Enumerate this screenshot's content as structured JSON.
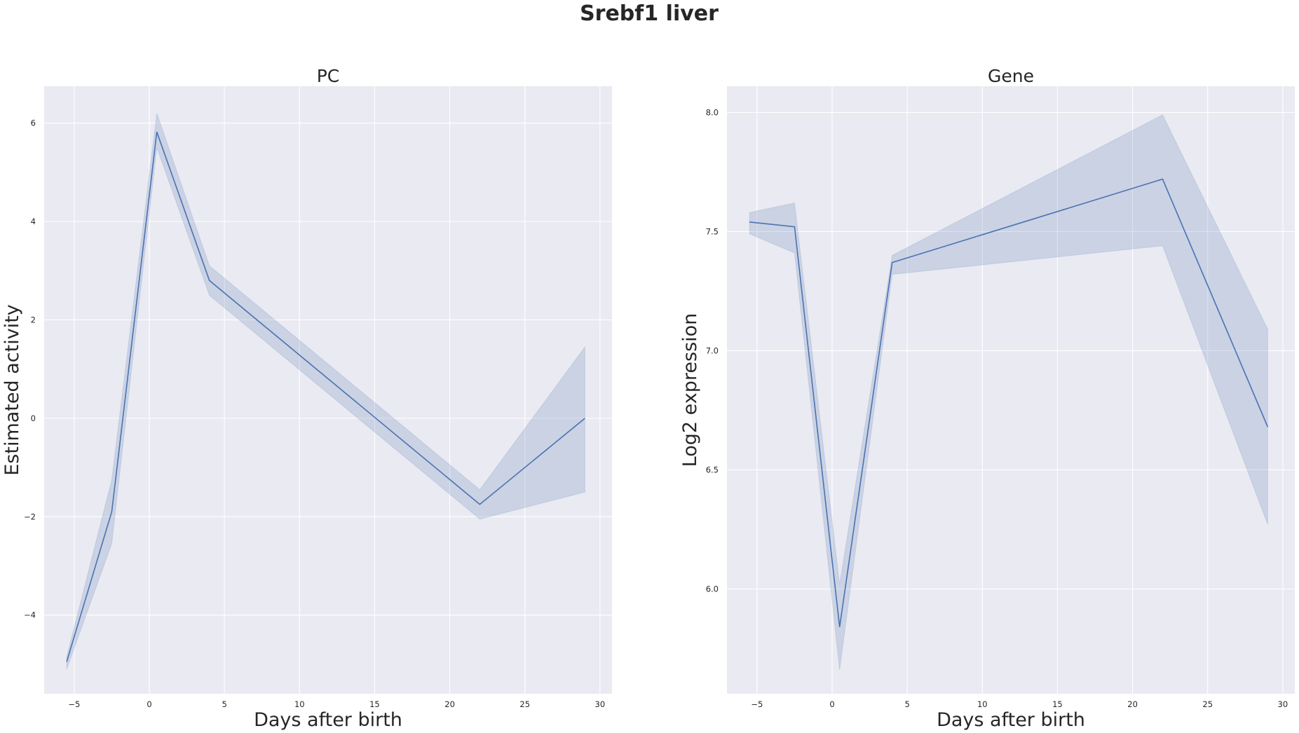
{
  "suptitle": "Srebf1 liver",
  "chart_data": [
    {
      "type": "line",
      "title": "PC",
      "xlabel": "Days after birth",
      "ylabel": "Estimated activity",
      "xlim": [
        -7,
        30.8
      ],
      "ylim": [
        -5.6,
        6.75
      ],
      "xticks": [
        -5,
        0,
        5,
        10,
        15,
        20,
        25,
        30
      ],
      "xtick_labels": [
        "−5",
        "0",
        "5",
        "10",
        "15",
        "20",
        "25",
        "30"
      ],
      "yticks": [
        -4,
        -2,
        0,
        2,
        4,
        6
      ],
      "ytick_labels": [
        "−4",
        "−2",
        "0",
        "2",
        "4",
        "6"
      ],
      "grid": true,
      "line_color": "#4c72b0",
      "series": [
        {
          "x": [
            -5.5,
            -2.5,
            0.5,
            4,
            22,
            29
          ],
          "y": [
            -4.95,
            -1.9,
            5.82,
            2.8,
            -1.75,
            0.0
          ],
          "ci_upper": [
            -4.85,
            -1.25,
            6.2,
            3.1,
            -1.45,
            1.45
          ],
          "ci_lower": [
            -5.1,
            -2.55,
            5.5,
            2.5,
            -2.05,
            -1.5
          ]
        }
      ]
    },
    {
      "type": "line",
      "title": "Gene",
      "xlabel": "Days after birth",
      "ylabel": "Log2 expression",
      "xlim": [
        -7,
        30.8
      ],
      "ylim": [
        5.56,
        8.11
      ],
      "xticks": [
        -5,
        0,
        5,
        10,
        15,
        20,
        25,
        30
      ],
      "xtick_labels": [
        "−5",
        "0",
        "5",
        "10",
        "15",
        "20",
        "25",
        "30"
      ],
      "yticks": [
        6.0,
        6.5,
        7.0,
        7.5,
        8.0
      ],
      "ytick_labels": [
        "6.0",
        "6.5",
        "7.0",
        "7.5",
        "8.0"
      ],
      "grid": true,
      "line_color": "#4c72b0",
      "series": [
        {
          "x": [
            -5.5,
            -2.5,
            0.5,
            4,
            22,
            29
          ],
          "y": [
            7.54,
            7.52,
            5.84,
            7.37,
            7.72,
            6.68
          ],
          "ci_upper": [
            7.58,
            7.62,
            6.02,
            7.4,
            7.99,
            7.09
          ],
          "ci_lower": [
            7.49,
            7.41,
            5.66,
            7.32,
            7.44,
            6.27
          ]
        }
      ]
    }
  ]
}
